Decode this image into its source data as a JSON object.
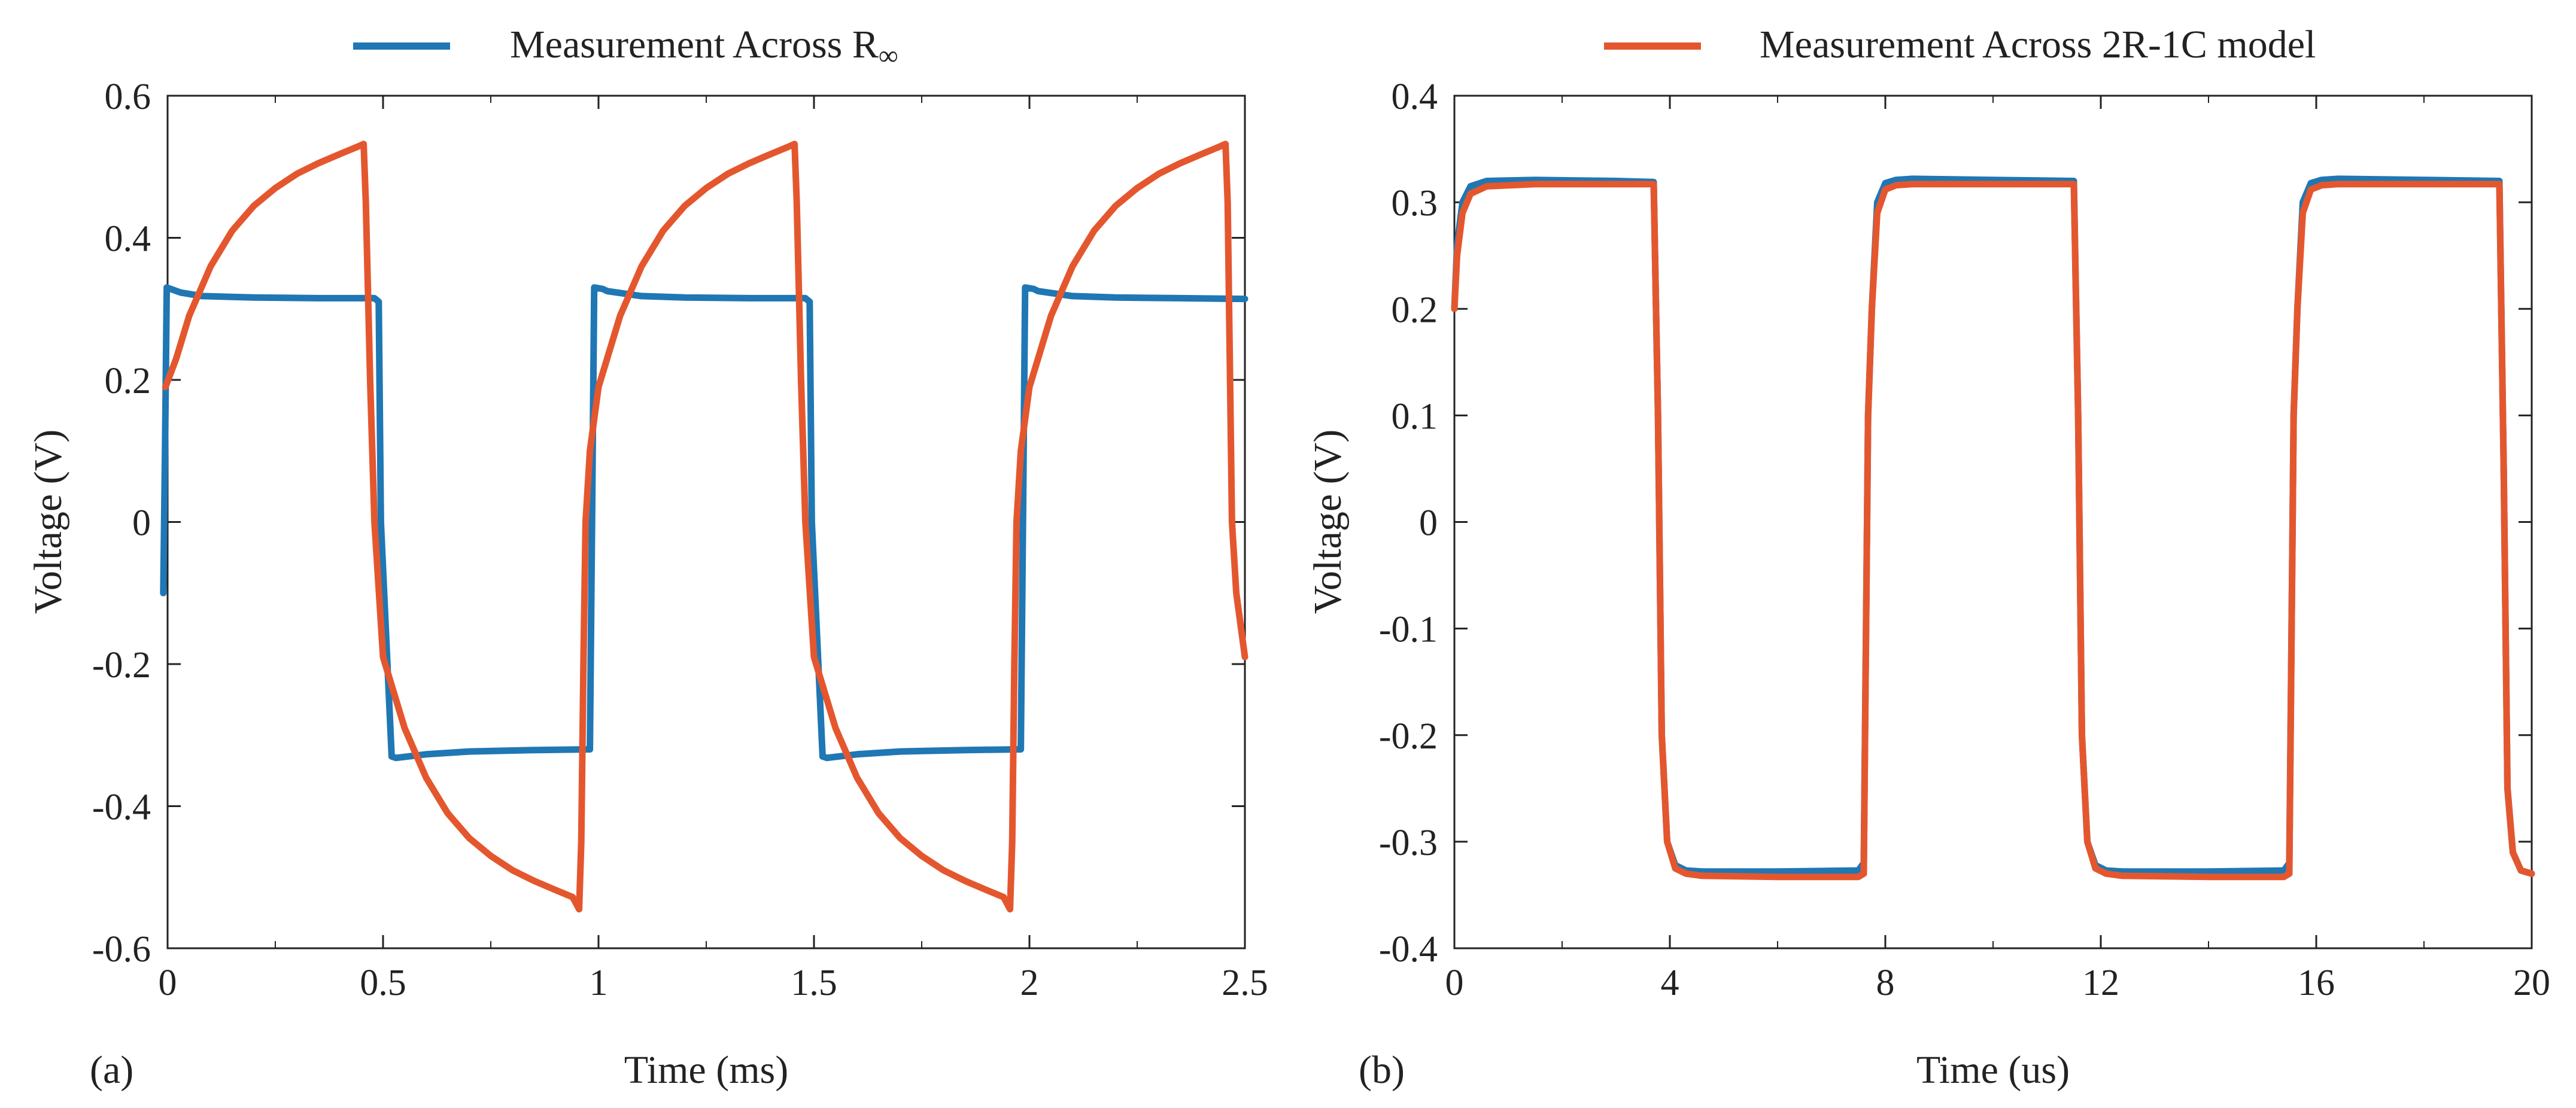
{
  "colors": {
    "blue": "#1f77b4",
    "orange": "#e4572e",
    "axis": "#222222"
  },
  "chart_data": [
    {
      "type": "line",
      "panel_label": "(a)",
      "xlabel": "Time (ms)",
      "ylabel": "Voltage (V)",
      "xlim": [
        0,
        2.5
      ],
      "ylim": [
        -0.6,
        0.6
      ],
      "xticks": [
        0,
        0.5,
        1,
        1.5,
        2,
        2.5
      ],
      "xtick_labels": [
        "0",
        "0.5",
        "1",
        "1.5",
        "2",
        "2.5"
      ],
      "yticks": [
        -0.6,
        -0.4,
        -0.2,
        0,
        0.2,
        0.4,
        0.6
      ],
      "ytick_labels": [
        "-0.6",
        "-0.4",
        "-0.2",
        "0",
        "0.2",
        "0.4",
        "0.6"
      ],
      "legend": {
        "position": "top",
        "entry": "Measurement Across R",
        "subscript": "∞"
      },
      "series": [
        {
          "name": "Measurement Across R∞",
          "color": "#1f77b4",
          "x": [
            -0.01,
            -0.006,
            -0.002,
            0.03,
            0.08,
            0.2,
            0.35,
            0.48,
            0.49,
            0.495,
            0.52,
            0.53,
            0.6,
            0.7,
            0.85,
            0.98,
            0.985,
            0.99,
            1.01,
            1.02,
            1.1,
            1.2,
            1.35,
            1.48,
            1.49,
            1.495,
            1.52,
            1.53,
            1.6,
            1.7,
            1.85,
            1.98,
            1.985,
            1.99,
            2.01,
            2.02,
            2.1,
            2.2,
            2.35,
            2.5
          ],
          "y": [
            -0.1,
            0.1,
            0.33,
            0.323,
            0.318,
            0.316,
            0.315,
            0.315,
            0.31,
            0.0,
            -0.33,
            -0.332,
            -0.327,
            -0.323,
            -0.321,
            -0.32,
            0.0,
            0.33,
            0.328,
            0.325,
            0.318,
            0.316,
            0.315,
            0.315,
            0.31,
            0.0,
            -0.33,
            -0.332,
            -0.327,
            -0.323,
            -0.321,
            -0.32,
            0.0,
            0.33,
            0.328,
            0.325,
            0.318,
            0.316,
            0.315,
            0.314
          ]
        },
        {
          "name": "Measurement Across 2R-1C model",
          "color": "#e4572e",
          "x": [
            -0.005,
            0.02,
            0.05,
            0.1,
            0.15,
            0.2,
            0.25,
            0.3,
            0.35,
            0.4,
            0.44,
            0.455,
            0.46,
            0.47,
            0.48,
            0.5,
            0.55,
            0.6,
            0.65,
            0.7,
            0.75,
            0.8,
            0.85,
            0.9,
            0.94,
            0.955,
            0.96,
            0.965,
            0.97,
            0.98,
            1.0,
            1.05,
            1.1,
            1.15,
            1.2,
            1.25,
            1.3,
            1.35,
            1.4,
            1.44,
            1.455,
            1.46,
            1.47,
            1.48,
            1.5,
            1.55,
            1.6,
            1.65,
            1.7,
            1.75,
            1.8,
            1.85,
            1.9,
            1.94,
            1.955,
            1.96,
            1.965,
            1.97,
            1.98,
            2.0,
            2.05,
            2.1,
            2.15,
            2.2,
            2.25,
            2.3,
            2.35,
            2.4,
            2.44,
            2.455,
            2.46,
            2.47,
            2.48,
            2.5
          ],
          "y": [
            0.19,
            0.23,
            0.29,
            0.36,
            0.41,
            0.445,
            0.47,
            0.49,
            0.505,
            0.518,
            0.528,
            0.532,
            0.45,
            0.2,
            0.0,
            -0.19,
            -0.29,
            -0.36,
            -0.41,
            -0.445,
            -0.47,
            -0.49,
            -0.505,
            -0.518,
            -0.528,
            -0.545,
            -0.45,
            -0.2,
            0.0,
            0.1,
            0.19,
            0.29,
            0.36,
            0.41,
            0.445,
            0.47,
            0.49,
            0.505,
            0.518,
            0.528,
            0.532,
            0.45,
            0.2,
            0.0,
            -0.19,
            -0.29,
            -0.36,
            -0.41,
            -0.445,
            -0.47,
            -0.49,
            -0.505,
            -0.518,
            -0.528,
            -0.545,
            -0.45,
            -0.2,
            0.0,
            0.1,
            0.19,
            0.29,
            0.36,
            0.41,
            0.445,
            0.47,
            0.49,
            0.505,
            0.518,
            0.528,
            0.532,
            0.45,
            0.0,
            -0.1,
            -0.19
          ]
        }
      ]
    },
    {
      "type": "line",
      "panel_label": "(b)",
      "xlabel": "Time (us)",
      "ylabel": "Voltage (V)",
      "xlim": [
        0,
        20
      ],
      "ylim": [
        -0.4,
        0.4
      ],
      "xticks": [
        0,
        4,
        8,
        12,
        16,
        20
      ],
      "xtick_labels": [
        "0",
        "4",
        "8",
        "12",
        "16",
        "20"
      ],
      "yticks": [
        -0.4,
        -0.3,
        -0.2,
        -0.1,
        0,
        0.1,
        0.2,
        0.3,
        0.4
      ],
      "ytick_labels": [
        "-0.4",
        "-0.3",
        "-0.2",
        "-0.1",
        "0",
        "0.1",
        "0.2",
        "0.3",
        "0.4"
      ],
      "legend": {
        "position": "top",
        "entry": "Measurement Across 2R-1C model"
      },
      "series": [
        {
          "name": "Measurement Across R∞",
          "color": "#1f77b4",
          "x": [
            0.0,
            0.05,
            0.15,
            0.3,
            0.6,
            1.5,
            3.0,
            3.7,
            3.78,
            3.85,
            3.95,
            4.1,
            4.3,
            4.6,
            6.0,
            7.5,
            7.6,
            7.68,
            7.75,
            7.85,
            8.0,
            8.2,
            8.5,
            10.0,
            11.5,
            11.58,
            11.65,
            11.75,
            11.9,
            12.1,
            12.4,
            14.0,
            15.4,
            15.5,
            15.58,
            15.65,
            15.75,
            15.9,
            16.1,
            16.4,
            18.0,
            19.4,
            19.48,
            19.55,
            19.65,
            19.8,
            20.0
          ],
          "y": [
            0.2,
            0.26,
            0.3,
            0.315,
            0.32,
            0.321,
            0.32,
            0.319,
            0.1,
            -0.2,
            -0.3,
            -0.322,
            -0.327,
            -0.328,
            -0.328,
            -0.327,
            -0.32,
            0.1,
            0.2,
            0.3,
            0.318,
            0.321,
            0.322,
            0.321,
            0.32,
            0.1,
            -0.2,
            -0.3,
            -0.322,
            -0.327,
            -0.328,
            -0.328,
            -0.327,
            -0.32,
            0.1,
            0.2,
            0.3,
            0.318,
            0.321,
            0.322,
            0.321,
            0.32,
            0.05,
            -0.25,
            -0.31,
            -0.327,
            -0.33
          ]
        },
        {
          "name": "Measurement Across 2R-1C model",
          "color": "#e4572e",
          "x": [
            0.0,
            0.05,
            0.15,
            0.3,
            0.6,
            1.5,
            3.0,
            3.7,
            3.78,
            3.85,
            3.95,
            4.1,
            4.3,
            4.6,
            6.0,
            7.5,
            7.6,
            7.68,
            7.75,
            7.85,
            8.0,
            8.2,
            8.5,
            10.0,
            11.5,
            11.58,
            11.65,
            11.75,
            11.9,
            12.1,
            12.4,
            14.0,
            15.4,
            15.5,
            15.58,
            15.65,
            15.75,
            15.9,
            16.1,
            16.4,
            18.0,
            19.4,
            19.48,
            19.55,
            19.65,
            19.8,
            20.0
          ],
          "y": [
            0.2,
            0.25,
            0.29,
            0.308,
            0.315,
            0.317,
            0.317,
            0.317,
            0.1,
            -0.2,
            -0.3,
            -0.325,
            -0.33,
            -0.332,
            -0.333,
            -0.333,
            -0.33,
            0.1,
            0.2,
            0.29,
            0.312,
            0.316,
            0.317,
            0.317,
            0.317,
            0.1,
            -0.2,
            -0.3,
            -0.325,
            -0.33,
            -0.332,
            -0.333,
            -0.333,
            -0.33,
            0.1,
            0.2,
            0.29,
            0.312,
            0.316,
            0.317,
            0.317,
            0.317,
            0.05,
            -0.25,
            -0.31,
            -0.327,
            -0.33
          ]
        }
      ]
    }
  ]
}
